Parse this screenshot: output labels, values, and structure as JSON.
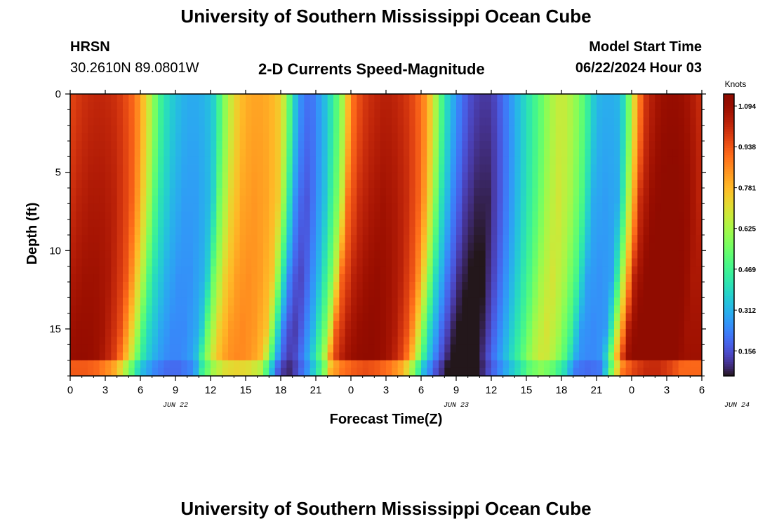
{
  "page": {
    "title": "University of Southern Mississippi Ocean Cube",
    "title_repeat": "University of Southern Mississippi Ocean Cube"
  },
  "header": {
    "station": "HRSN",
    "location": "30.2610N  89.0801W",
    "plot_title": "2-D Currents Speed-Magnitude",
    "model_start_label": "Model Start Time",
    "model_start_value": "06/22/2024 Hour 03"
  },
  "chart_data": {
    "type": "heatmap",
    "title": "2-D Currents Speed-Magnitude",
    "xlabel": "Forecast Time(Z)",
    "ylabel": "Depth (ft)",
    "x_range_hours": [
      0,
      54
    ],
    "x_tick_labels": [
      "0",
      "3",
      "6",
      "9",
      "12",
      "15",
      "18",
      "21",
      "0",
      "3",
      "6",
      "9",
      "12",
      "15",
      "18",
      "21",
      "0",
      "3",
      "6"
    ],
    "date_labels": [
      {
        "label": "JUN 22",
        "hour": 12
      },
      {
        "label": "JUN 23",
        "hour": 36
      },
      {
        "label": "JUN 24",
        "hour": 60
      }
    ],
    "y_range": [
      0,
      18
    ],
    "y_reversed": true,
    "y_tick_labels": [
      "0",
      "5",
      "10",
      "15"
    ],
    "y_ticks": [
      0,
      5,
      10,
      15
    ],
    "colorbar": {
      "label": "Knots",
      "min": 0.06,
      "max": 1.14,
      "ticks": [
        1.094,
        0.938,
        0.781,
        0.625,
        0.469,
        0.312,
        0.156
      ],
      "tick_labels": [
        "1.094",
        "0.938",
        "0.781",
        "0.625",
        "0.469",
        "0.312",
        "0.156"
      ],
      "colormap": "turbo"
    },
    "speed_profile_surface": {
      "hours": [
        0,
        1,
        2,
        3,
        4,
        5,
        5.5,
        6,
        6.5,
        7,
        7.5,
        8,
        9,
        10,
        11,
        12,
        12.5,
        13,
        14,
        15,
        16,
        17,
        18,
        18.5,
        19,
        19.5,
        20,
        20.5,
        21,
        22,
        23,
        23.5,
        24,
        25,
        26,
        27,
        28,
        29,
        30,
        30.5,
        31,
        31.5,
        32,
        33,
        34,
        35,
        36,
        37,
        38,
        39,
        40,
        41,
        42,
        43,
        44,
        44.5,
        45,
        46,
        47,
        47.5,
        48,
        48.5,
        49,
        50,
        51,
        52,
        53,
        54
      ],
      "knots": [
        0.96,
        1.0,
        1.02,
        1.02,
        1.0,
        0.94,
        0.9,
        0.82,
        0.72,
        0.62,
        0.5,
        0.42,
        0.34,
        0.3,
        0.3,
        0.34,
        0.4,
        0.55,
        0.72,
        0.8,
        0.82,
        0.8,
        0.74,
        0.6,
        0.42,
        0.28,
        0.22,
        0.2,
        0.24,
        0.36,
        0.55,
        0.68,
        0.88,
        0.98,
        1.02,
        1.04,
        1.02,
        0.98,
        0.9,
        0.82,
        0.7,
        0.56,
        0.42,
        0.26,
        0.16,
        0.12,
        0.12,
        0.2,
        0.3,
        0.4,
        0.5,
        0.62,
        0.68,
        0.62,
        0.5,
        0.4,
        0.32,
        0.3,
        0.32,
        0.45,
        0.65,
        0.82,
        0.98,
        1.06,
        1.1,
        1.1,
        1.06,
        1.0
      ]
    }
  }
}
